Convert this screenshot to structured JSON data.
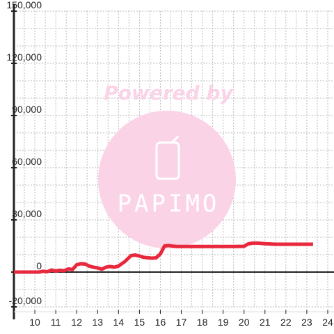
{
  "chart_data": {
    "type": "line",
    "x": [
      9.0,
      9.5,
      10.0,
      10.2,
      10.4,
      10.6,
      10.8,
      11.0,
      11.2,
      11.4,
      11.6,
      11.8,
      12.0,
      12.2,
      12.4,
      12.6,
      12.8,
      13.0,
      13.2,
      13.4,
      13.6,
      13.8,
      14.0,
      14.3,
      14.6,
      14.8,
      15.0,
      15.2,
      15.4,
      15.6,
      15.8,
      16.0,
      16.2,
      16.4,
      16.6,
      16.8,
      17.0,
      17.5,
      18.0,
      18.5,
      19.0,
      19.5,
      20.0,
      20.2,
      20.4,
      20.6,
      21.0,
      21.5,
      22.0,
      22.5,
      23.0,
      23.3
    ],
    "series": [
      {
        "values": [
          0,
          0,
          0,
          0,
          500,
          200,
          1200,
          600,
          1000,
          800,
          1800,
          1500,
          4200,
          4800,
          4600,
          3500,
          2800,
          2400,
          1600,
          2800,
          3200,
          2800,
          3500,
          6000,
          9500,
          9800,
          9200,
          8500,
          8200,
          8000,
          8200,
          10500,
          15000,
          15300,
          14900,
          14700,
          14700,
          14700,
          14700,
          14700,
          14700,
          14700,
          14800,
          16200,
          16600,
          16700,
          16300,
          16000,
          16000,
          16000,
          16000,
          16000
        ]
      }
    ],
    "x_ticks": [
      "10",
      "11",
      "12",
      "13",
      "14",
      "15",
      "16",
      "17",
      "18",
      "19",
      "20",
      "21",
      "22",
      "23",
      "24"
    ],
    "y_ticks": [
      "-20,000",
      "0",
      "30,000",
      "60,000",
      "90,000",
      "120,000",
      "150,000"
    ],
    "xlim": [
      9,
      24.3
    ],
    "ylim": [
      -20000,
      150000
    ],
    "grid": true,
    "line_color": "#e8283c",
    "axis_color": "#222222",
    "grid_color": "#bbbbbb",
    "watermark": {
      "text": "Powered by",
      "brand": "PAPIMO",
      "color": "#fbd3e7"
    }
  }
}
